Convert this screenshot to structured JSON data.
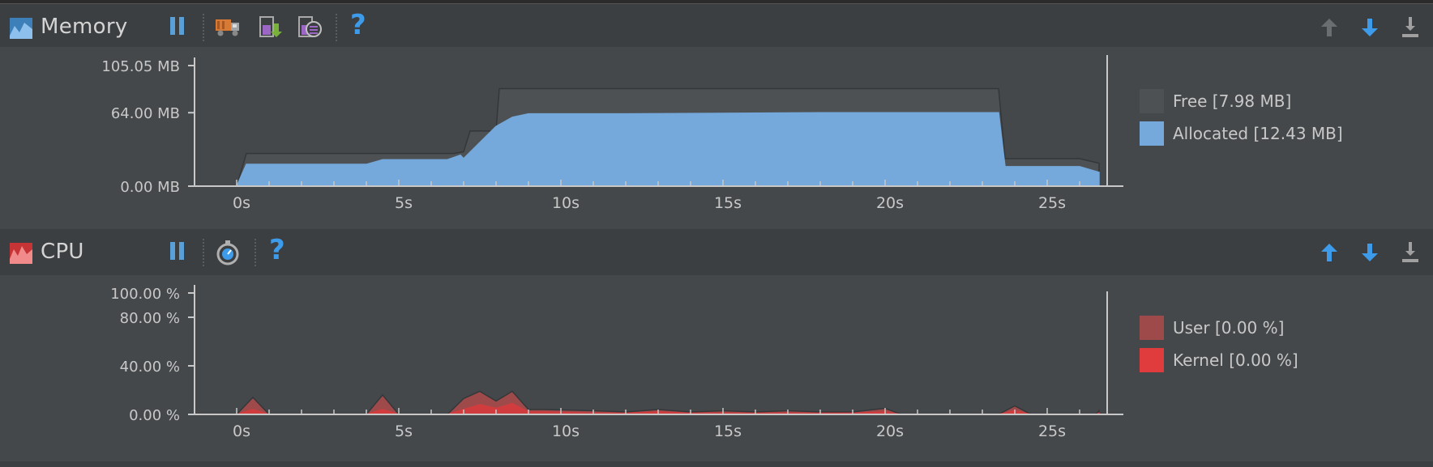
{
  "memory": {
    "title": "Memory",
    "toolbar": {
      "pause_icon": "pause-icon",
      "gc_icon": "garbage-truck-icon",
      "dump_heap_icon": "dump-java-heap-icon",
      "alloc_tracking_icon": "allocation-tracking-icon",
      "help_label": "?"
    },
    "chart_data": {
      "type": "area",
      "title": "",
      "xlabel": "",
      "ylabel": "",
      "x_ticks": [
        "0s",
        "5s",
        "10s",
        "15s",
        "20s",
        "25s"
      ],
      "y_ticks": [
        "105.05 MB",
        "64.00 MB",
        "0.00 MB"
      ],
      "ylim": [
        0,
        105.05
      ],
      "xlim": [
        -1.3,
        27.4
      ],
      "series": [
        {
          "name": "Free [7.98 MB]",
          "color": "#4d5154",
          "x": [
            0,
            0.3,
            4.5,
            6.7,
            7.0,
            7.2,
            8.0,
            8.1,
            23.5,
            23.7,
            26.0,
            26.6
          ],
          "y": [
            0,
            28.5,
            28.5,
            28.5,
            30,
            48,
            48,
            85,
            85,
            24,
            24,
            20
          ]
        },
        {
          "name": "Allocated [12.43 MB]",
          "color": "#75a8db",
          "x": [
            0,
            0.3,
            4.0,
            4.5,
            6.5,
            6.9,
            7.0,
            8.0,
            8.5,
            9.0,
            12.0,
            18.0,
            23.5,
            23.7,
            26.0,
            26.6
          ],
          "y": [
            0,
            19,
            19,
            23,
            23,
            27,
            24,
            52,
            60,
            63,
            63,
            64,
            64,
            17,
            17,
            12
          ]
        }
      ]
    }
  },
  "cpu": {
    "title": "CPU",
    "toolbar": {
      "pause_icon": "pause-icon",
      "method_trace_icon": "stopwatch-icon",
      "help_label": "?"
    },
    "chart_data": {
      "type": "area",
      "title": "",
      "xlabel": "",
      "ylabel": "",
      "x_ticks": [
        "0s",
        "5s",
        "10s",
        "15s",
        "20s",
        "25s"
      ],
      "y_ticks": [
        "100.00 %",
        "80.00 %",
        "40.00 %",
        "0.00 %"
      ],
      "ylim": [
        0,
        100
      ],
      "xlim": [
        -1.3,
        27.4
      ],
      "series": [
        {
          "name": "User [0.00 %]",
          "color": "#9e4a4b",
          "x": [
            0,
            0.5,
            1.0,
            4.0,
            4.5,
            5.0,
            6.5,
            7.0,
            7.5,
            8.0,
            8.5,
            9.0,
            9.5,
            11,
            12,
            13,
            14,
            15,
            16,
            17,
            18,
            19,
            20,
            20.5,
            23.5,
            24.0,
            24.5,
            26.5,
            26.6
          ],
          "y": [
            0,
            14,
            0,
            0,
            16,
            0,
            0,
            13,
            19,
            11,
            19,
            4,
            4,
            3,
            2,
            4,
            2,
            3,
            2,
            3,
            2,
            2,
            5,
            0,
            0,
            7,
            0,
            0,
            3
          ]
        },
        {
          "name": "Kernel [0.00 %]",
          "color": "#d13d3f",
          "x": [
            0,
            0.5,
            1.0,
            4.0,
            4.5,
            5.0,
            6.5,
            7.0,
            7.5,
            8.0,
            8.5,
            9.0,
            9.5,
            11,
            12,
            13,
            14,
            15,
            16,
            17,
            18,
            19,
            20,
            20.5,
            23.5,
            24.0,
            24.5,
            26.5,
            26.6
          ],
          "y": [
            0,
            4,
            0,
            0,
            4,
            0,
            0,
            4,
            8,
            5,
            9,
            2,
            2,
            1,
            1,
            2,
            1,
            1,
            1,
            1,
            1,
            1,
            2,
            0,
            0,
            3,
            0,
            0,
            1
          ]
        }
      ]
    }
  },
  "colors": {
    "panel_bg": "#45484a",
    "toolbar_bg": "#3c3f41",
    "axis": "#c8c8c8",
    "accent_blue": "#3d9be9"
  }
}
